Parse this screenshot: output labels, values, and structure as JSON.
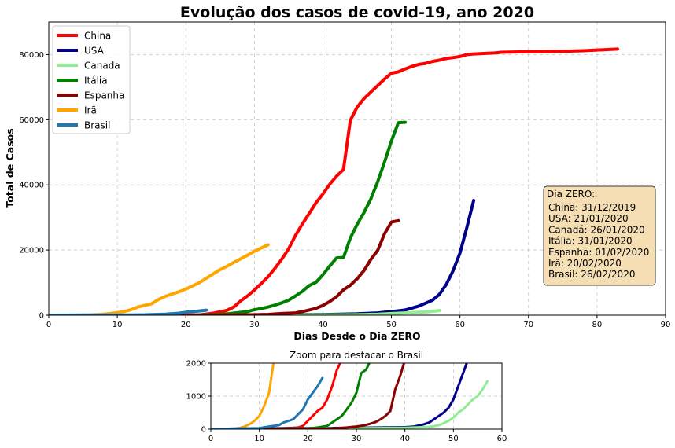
{
  "chart_data": [
    {
      "type": "line",
      "title": "Evolução dos casos de covid-19, ano 2020",
      "xlabel": "Dias Desde o Dia ZERO",
      "ylabel": "Total de Casos",
      "xlim": [
        0,
        90
      ],
      "ylim": [
        0,
        90000
      ],
      "xticks": [
        0,
        10,
        20,
        30,
        40,
        50,
        60,
        70,
        80,
        90
      ],
      "yticks": [
        0,
        20000,
        40000,
        60000,
        80000
      ],
      "grid": true,
      "legend": "top-left",
      "annotation": {
        "title": "Dia ZERO:",
        "lines": [
          "China: 31/12/2019",
          "USA: 21/01/2020",
          "Canadá: 26/01/2020",
          "Itália: 31/01/2020",
          "Espanha: 01/02/2020",
          "Irã: 20/02/2020",
          "Brasil: 26/02/2020"
        ]
      },
      "series": [
        {
          "name": "China",
          "color": "#ff0000",
          "x": [
            20,
            22,
            24,
            26,
            27,
            28,
            29,
            30,
            31,
            32,
            33,
            34,
            35,
            36,
            37,
            38,
            39,
            40,
            41,
            42,
            43,
            44,
            45,
            46,
            47,
            48,
            49,
            50,
            51,
            52,
            53,
            54,
            55,
            56,
            57,
            58,
            59,
            60,
            61,
            62,
            63,
            64,
            65,
            66,
            68,
            70,
            72,
            75,
            78,
            80,
            83
          ],
          "y": [
            0,
            100,
            600,
            1500,
            2500,
            4400,
            5900,
            7700,
            9700,
            11800,
            14400,
            17200,
            20400,
            24500,
            28000,
            31200,
            34500,
            37200,
            40200,
            42700,
            44700,
            59800,
            63900,
            66500,
            68500,
            70500,
            72500,
            74300,
            74700,
            75600,
            76400,
            77000,
            77300,
            77900,
            78300,
            78800,
            79100,
            79400,
            80000,
            80200,
            80300,
            80400,
            80500,
            80700,
            80800,
            80900,
            80900,
            81000,
            81200,
            81400,
            81700
          ]
        },
        {
          "name": "USA",
          "color": "#00008b",
          "x": [
            0,
            10,
            20,
            30,
            40,
            45,
            48,
            50,
            52,
            54,
            55,
            56,
            57,
            58,
            59,
            60,
            61,
            62
          ],
          "y": [
            0,
            10,
            20,
            60,
            200,
            400,
            700,
            1100,
            1600,
            2800,
            3700,
            4600,
            6400,
            9400,
            13700,
            19100,
            26900,
            35200
          ]
        },
        {
          "name": "Canada",
          "color": "#90ee90",
          "x": [
            0,
            10,
            20,
            30,
            40,
            45,
            48,
            50,
            52,
            54,
            55,
            56,
            57
          ],
          "y": [
            0,
            5,
            10,
            30,
            70,
            150,
            300,
            500,
            700,
            900,
            1000,
            1200,
            1450
          ]
        },
        {
          "name": "Itália",
          "color": "#008000",
          "x": [
            20,
            22,
            24,
            25,
            26,
            27,
            28,
            29,
            30,
            31,
            32,
            33,
            34,
            35,
            36,
            37,
            38,
            39,
            40,
            41,
            42,
            43,
            44,
            45,
            46,
            47,
            48,
            49,
            50,
            51,
            52
          ],
          "y": [
            0,
            100,
            200,
            300,
            400,
            650,
            900,
            1100,
            1700,
            2000,
            2500,
            3100,
            3800,
            4600,
            5900,
            7300,
            9100,
            10100,
            12400,
            15100,
            17600,
            17700,
            23700,
            27900,
            31500,
            35700,
            41000,
            47000,
            53500,
            59100,
            59200
          ]
        },
        {
          "name": "Espanha",
          "color": "#8b0000",
          "x": [
            0,
            10,
            20,
            25,
            28,
            30,
            32,
            34,
            36,
            37,
            38,
            39,
            40,
            41,
            42,
            43,
            44,
            45,
            46,
            47,
            48,
            49,
            50,
            51
          ],
          "y": [
            0,
            5,
            10,
            30,
            80,
            150,
            250,
            500,
            700,
            1100,
            1600,
            2100,
            3000,
            4200,
            5700,
            7800,
            9200,
            11200,
            13700,
            17100,
            19900,
            25000,
            28600,
            29000
          ]
        },
        {
          "name": "Irã",
          "color": "#ffa500",
          "x": [
            0,
            4,
            6,
            8,
            9,
            10,
            11,
            12,
            13,
            14,
            15,
            16,
            17,
            18,
            19,
            20,
            21,
            22,
            23,
            24,
            25,
            26,
            27,
            28,
            29,
            30,
            31,
            32
          ],
          "y": [
            0,
            30,
            100,
            300,
            500,
            800,
            1100,
            1700,
            2500,
            3000,
            3500,
            4800,
            5800,
            6500,
            7200,
            8000,
            9000,
            10000,
            11400,
            12700,
            14000,
            15000,
            16200,
            17300,
            18400,
            19600,
            20600,
            21600
          ]
        },
        {
          "name": "Brasil",
          "color": "#1f77b4",
          "x": [
            0,
            5,
            10,
            12,
            14,
            15,
            16,
            17,
            18,
            19,
            20,
            21,
            22,
            23
          ],
          "y": [
            0,
            20,
            30,
            80,
            120,
            200,
            250,
            300,
            450,
            600,
            900,
            1100,
            1300,
            1550
          ]
        }
      ]
    },
    {
      "type": "line",
      "title": "Zoom para destacar o Brasil",
      "xlabel": "",
      "ylabel": "",
      "xlim": [
        0,
        60
      ],
      "ylim": [
        0,
        2000
      ],
      "xticks": [
        0,
        10,
        20,
        30,
        40,
        50,
        60
      ],
      "yticks": [
        0,
        1000,
        2000
      ],
      "grid": true,
      "series": [
        {
          "name": "China",
          "color": "#ff0000",
          "x": [
            0,
            5,
            10,
            15,
            17,
            18,
            19,
            20,
            21,
            22,
            23,
            24,
            25,
            26,
            27
          ],
          "y": [
            0,
            10,
            20,
            30,
            40,
            50,
            100,
            250,
            400,
            550,
            650,
            900,
            1300,
            1800,
            2100
          ]
        },
        {
          "name": "USA",
          "color": "#00008b",
          "x": [
            0,
            10,
            20,
            30,
            35,
            40,
            42,
            44,
            45,
            46,
            47,
            48,
            49,
            50,
            51,
            52,
            53
          ],
          "y": [
            0,
            20,
            30,
            40,
            50,
            60,
            80,
            150,
            200,
            300,
            400,
            500,
            650,
            900,
            1300,
            1700,
            2100
          ]
        },
        {
          "name": "Canada",
          "color": "#90ee90",
          "x": [
            0,
            10,
            20,
            30,
            40,
            45,
            47,
            48,
            49,
            50,
            51,
            52,
            53,
            54,
            55,
            56,
            57
          ],
          "y": [
            0,
            10,
            20,
            30,
            40,
            70,
            120,
            180,
            250,
            350,
            500,
            600,
            750,
            900,
            1000,
            1200,
            1450
          ]
        },
        {
          "name": "Itália",
          "color": "#008000",
          "x": [
            0,
            10,
            20,
            22,
            24,
            25,
            26,
            27,
            28,
            29,
            30,
            31,
            32,
            33
          ],
          "y": [
            0,
            10,
            20,
            50,
            100,
            200,
            300,
            400,
            600,
            800,
            1100,
            1700,
            1800,
            2100
          ]
        },
        {
          "name": "Espanha",
          "color": "#8b0000",
          "x": [
            0,
            10,
            20,
            25,
            28,
            30,
            31,
            32,
            33,
            34,
            35,
            36,
            37,
            38,
            39,
            40
          ],
          "y": [
            0,
            5,
            10,
            20,
            50,
            80,
            100,
            130,
            170,
            220,
            300,
            400,
            550,
            1200,
            1600,
            2100
          ]
        },
        {
          "name": "Irã",
          "color": "#ffa500",
          "x": [
            0,
            3,
            5,
            6,
            7,
            8,
            9,
            10,
            11,
            12,
            13
          ],
          "y": [
            0,
            5,
            20,
            40,
            80,
            150,
            250,
            400,
            700,
            1100,
            2100
          ]
        },
        {
          "name": "Brasil",
          "color": "#1f77b4",
          "x": [
            0,
            5,
            10,
            12,
            14,
            15,
            16,
            17,
            18,
            19,
            20,
            21,
            22,
            23
          ],
          "y": [
            0,
            20,
            30,
            80,
            120,
            200,
            250,
            300,
            450,
            600,
            900,
            1100,
            1300,
            1550
          ]
        }
      ]
    }
  ]
}
